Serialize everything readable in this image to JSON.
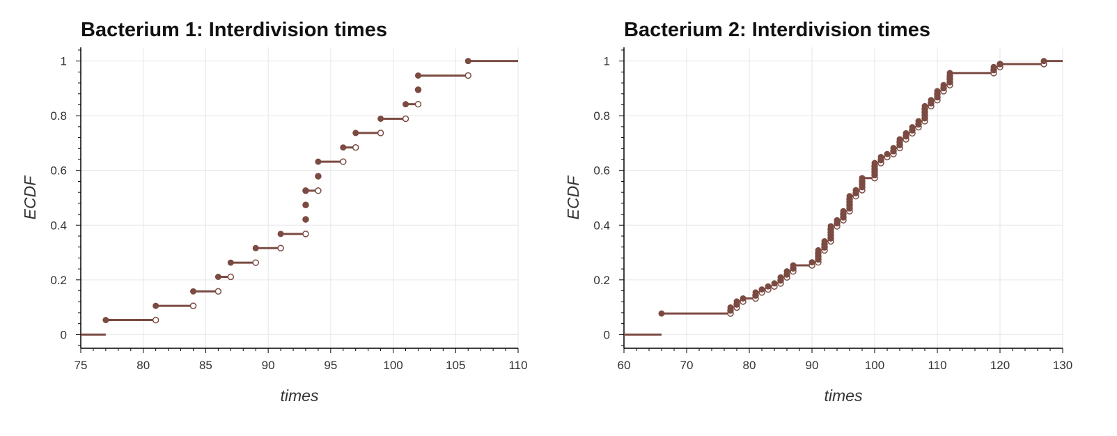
{
  "colors": {
    "series": "#7b4b42",
    "grid": "#e6e6e6",
    "axis": "#000000",
    "background": "#ffffff"
  },
  "chart_data": [
    {
      "type": "ecdf-step",
      "title": "Bacterium 1: Interdivision times",
      "xlabel": "times",
      "ylabel": "ECDF",
      "xlim": [
        75,
        110
      ],
      "ylim": [
        -0.05,
        1.05
      ],
      "xticks": [
        75,
        80,
        85,
        90,
        95,
        100,
        105,
        110
      ],
      "yticks": [
        0,
        0.2,
        0.4,
        0.6,
        0.8,
        1
      ],
      "ytick_labels": [
        "0",
        "0.2",
        "0.4",
        "0.6",
        "0.8",
        "1"
      ],
      "grid": true,
      "x": [
        77,
        81,
        84,
        86,
        87,
        89,
        91,
        93,
        93,
        93,
        93,
        94,
        94,
        96,
        97,
        99,
        101,
        102,
        102,
        106
      ],
      "y": [
        0.053,
        0.105,
        0.158,
        0.211,
        0.263,
        0.316,
        0.368,
        0.421,
        0.474,
        0.526,
        0.526,
        0.579,
        0.632,
        0.684,
        0.737,
        0.789,
        0.842,
        0.895,
        0.947,
        1.0
      ]
    },
    {
      "type": "ecdf-step",
      "title": "Bacterium 2: Interdivision times",
      "xlabel": "times",
      "ylabel": "ECDF",
      "xlim": [
        60,
        130
      ],
      "ylim": [
        -0.05,
        1.05
      ],
      "xticks": [
        60,
        70,
        80,
        90,
        100,
        110,
        120,
        130
      ],
      "yticks": [
        0,
        0.2,
        0.4,
        0.6,
        0.8,
        1
      ],
      "ytick_labels": [
        "0",
        "0.2",
        "0.4",
        "0.6",
        "0.8",
        "1"
      ],
      "grid": true,
      "x": [
        66,
        77,
        77,
        78,
        78,
        79,
        81,
        81,
        82,
        83,
        84,
        85,
        85,
        86,
        86,
        87,
        87,
        90,
        91,
        91,
        91,
        91,
        92,
        92,
        92,
        93,
        93,
        93,
        93,
        93,
        94,
        94,
        95,
        95,
        95,
        96,
        96,
        96,
        96,
        96,
        97,
        97,
        98,
        98,
        98,
        98,
        100,
        100,
        100,
        100,
        100,
        101,
        101,
        102,
        103,
        103,
        104,
        104,
        104,
        105,
        105,
        106,
        106,
        107,
        107,
        108,
        108,
        108,
        108,
        108,
        109,
        109,
        110,
        110,
        110,
        111,
        111,
        112,
        112,
        112,
        112,
        119,
        119,
        120,
        120,
        127
      ],
      "y": [
        0.077,
        0.088,
        0.099,
        0.11,
        0.121,
        0.132,
        0.143,
        0.154,
        0.165,
        0.176,
        0.187,
        0.198,
        0.209,
        0.22,
        0.231,
        0.242,
        0.253,
        0.264,
        0.275,
        0.286,
        0.297,
        0.308,
        0.319,
        0.33,
        0.341,
        0.352,
        0.363,
        0.374,
        0.385,
        0.396,
        0.407,
        0.418,
        0.429,
        0.44,
        0.451,
        0.462,
        0.473,
        0.484,
        0.495,
        0.506,
        0.517,
        0.528,
        0.539,
        0.55,
        0.561,
        0.572,
        0.583,
        0.594,
        0.605,
        0.616,
        0.627,
        0.638,
        0.649,
        0.66,
        0.671,
        0.682,
        0.693,
        0.704,
        0.714,
        0.725,
        0.736,
        0.747,
        0.758,
        0.769,
        0.78,
        0.791,
        0.802,
        0.813,
        0.824,
        0.835,
        0.846,
        0.857,
        0.868,
        0.879,
        0.89,
        0.901,
        0.912,
        0.923,
        0.934,
        0.945,
        0.956,
        0.967,
        0.978,
        0.989,
        0.989,
        1.0
      ]
    }
  ]
}
